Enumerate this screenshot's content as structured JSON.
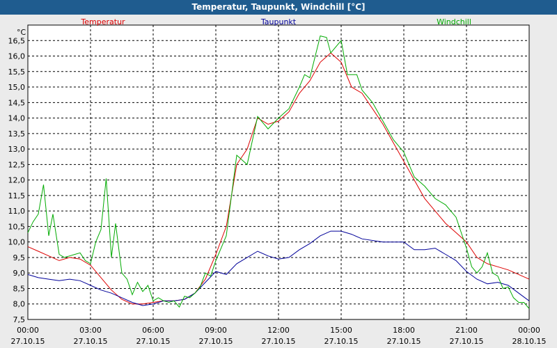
{
  "chart_data": {
    "type": "line",
    "title": "Temperatur, Taupunkt, Windchill [°C]",
    "ylabel": "°C",
    "ylim": [
      7.5,
      17.0
    ],
    "y_ticks": [
      "7,5",
      "8,0",
      "8,5",
      "9,0",
      "9,5",
      "10,0",
      "10,5",
      "11,0",
      "11,5",
      "12,0",
      "12,5",
      "13,0",
      "13,5",
      "14,0",
      "14,5",
      "15,0",
      "15,5",
      "16,0",
      "16,5"
    ],
    "x_ticks": [
      {
        "time": "00:00",
        "date": "27.10.15"
      },
      {
        "time": "03:00",
        "date": "27.10.15"
      },
      {
        "time": "06:00",
        "date": "27.10.15"
      },
      {
        "time": "09:00",
        "date": "27.10.15"
      },
      {
        "time": "12:00",
        "date": "27.10.15"
      },
      {
        "time": "15:00",
        "date": "27.10.15"
      },
      {
        "time": "18:00",
        "date": "27.10.15"
      },
      {
        "time": "21:00",
        "date": "27.10.15"
      },
      {
        "time": "00:00",
        "date": "28.10.15"
      }
    ],
    "grid": true,
    "legend_position": "top",
    "series": [
      {
        "name": "Temperatur",
        "color": "#dd0000",
        "points": [
          [
            0,
            9.85
          ],
          [
            0.5,
            9.7
          ],
          [
            1,
            9.55
          ],
          [
            1.5,
            9.4
          ],
          [
            2,
            9.5
          ],
          [
            2.5,
            9.45
          ],
          [
            3,
            9.25
          ],
          [
            3.5,
            8.85
          ],
          [
            4,
            8.45
          ],
          [
            4.5,
            8.15
          ],
          [
            5,
            8.0
          ],
          [
            5.5,
            8.0
          ],
          [
            6,
            8.05
          ],
          [
            6.5,
            8.1
          ],
          [
            7,
            8.1
          ],
          [
            7.5,
            8.15
          ],
          [
            8,
            8.35
          ],
          [
            8.5,
            8.8
          ],
          [
            9,
            9.6
          ],
          [
            9.5,
            10.5
          ],
          [
            10,
            12.5
          ],
          [
            10.5,
            13.0
          ],
          [
            11,
            14.0
          ],
          [
            11.5,
            13.8
          ],
          [
            12,
            13.9
          ],
          [
            12.5,
            14.2
          ],
          [
            13,
            14.8
          ],
          [
            13.5,
            15.2
          ],
          [
            14,
            15.8
          ],
          [
            14.5,
            16.1
          ],
          [
            15,
            15.8
          ],
          [
            15.5,
            15.0
          ],
          [
            16,
            14.8
          ],
          [
            16.5,
            14.3
          ],
          [
            17,
            13.8
          ],
          [
            17.5,
            13.2
          ],
          [
            18,
            12.6
          ],
          [
            18.5,
            12.0
          ],
          [
            19,
            11.4
          ],
          [
            19.5,
            11.0
          ],
          [
            20,
            10.6
          ],
          [
            20.5,
            10.3
          ],
          [
            21,
            10.0
          ],
          [
            21.5,
            9.5
          ],
          [
            22,
            9.3
          ],
          [
            22.5,
            9.2
          ],
          [
            23,
            9.1
          ],
          [
            23.5,
            8.95
          ],
          [
            24,
            8.8
          ]
        ]
      },
      {
        "name": "Taupunkt",
        "color": "#000099",
        "points": [
          [
            0,
            8.95
          ],
          [
            0.5,
            8.85
          ],
          [
            1,
            8.8
          ],
          [
            1.5,
            8.75
          ],
          [
            2,
            8.8
          ],
          [
            2.5,
            8.75
          ],
          [
            3,
            8.6
          ],
          [
            3.5,
            8.45
          ],
          [
            4,
            8.35
          ],
          [
            4.5,
            8.2
          ],
          [
            5,
            8.05
          ],
          [
            5.5,
            7.95
          ],
          [
            6,
            8.0
          ],
          [
            6.5,
            8.1
          ],
          [
            7,
            8.1
          ],
          [
            7.5,
            8.15
          ],
          [
            8,
            8.35
          ],
          [
            8.5,
            8.7
          ],
          [
            9,
            9.05
          ],
          [
            9.5,
            8.95
          ],
          [
            10,
            9.3
          ],
          [
            10.5,
            9.5
          ],
          [
            11,
            9.7
          ],
          [
            11.5,
            9.55
          ],
          [
            12,
            9.45
          ],
          [
            12.5,
            9.5
          ],
          [
            13,
            9.75
          ],
          [
            13.5,
            9.95
          ],
          [
            14,
            10.2
          ],
          [
            14.5,
            10.35
          ],
          [
            15,
            10.35
          ],
          [
            15.5,
            10.25
          ],
          [
            16,
            10.1
          ],
          [
            16.5,
            10.05
          ],
          [
            17,
            10.0
          ],
          [
            17.5,
            10.0
          ],
          [
            18,
            10.0
          ],
          [
            18.5,
            9.75
          ],
          [
            19,
            9.75
          ],
          [
            19.5,
            9.8
          ],
          [
            20,
            9.6
          ],
          [
            20.5,
            9.4
          ],
          [
            21,
            9.05
          ],
          [
            21.5,
            8.8
          ],
          [
            22,
            8.65
          ],
          [
            22.5,
            8.7
          ],
          [
            23,
            8.6
          ],
          [
            23.5,
            8.35
          ],
          [
            24,
            8.1
          ]
        ]
      },
      {
        "name": "Windchill",
        "color": "#00aa00",
        "points": [
          [
            0,
            10.3
          ],
          [
            0.25,
            10.65
          ],
          [
            0.5,
            10.9
          ],
          [
            0.75,
            11.85
          ],
          [
            1,
            10.2
          ],
          [
            1.2,
            10.9
          ],
          [
            1.5,
            9.6
          ],
          [
            1.75,
            9.5
          ],
          [
            2,
            9.55
          ],
          [
            2.25,
            9.6
          ],
          [
            2.5,
            9.65
          ],
          [
            2.75,
            9.4
          ],
          [
            3,
            9.3
          ],
          [
            3.25,
            10.0
          ],
          [
            3.5,
            10.4
          ],
          [
            3.75,
            12.05
          ],
          [
            4,
            9.5
          ],
          [
            4.2,
            10.6
          ],
          [
            4.5,
            9.0
          ],
          [
            4.75,
            8.8
          ],
          [
            5,
            8.3
          ],
          [
            5.25,
            8.7
          ],
          [
            5.5,
            8.4
          ],
          [
            5.75,
            8.6
          ],
          [
            6,
            8.1
          ],
          [
            6.25,
            8.2
          ],
          [
            6.5,
            8.1
          ],
          [
            6.75,
            8.05
          ],
          [
            7,
            8.1
          ],
          [
            7.25,
            7.9
          ],
          [
            7.5,
            8.25
          ],
          [
            7.75,
            8.2
          ],
          [
            8,
            8.35
          ],
          [
            8.25,
            8.55
          ],
          [
            8.5,
            9.0
          ],
          [
            8.75,
            8.9
          ],
          [
            9,
            9.4
          ],
          [
            9.5,
            10.2
          ],
          [
            10,
            12.8
          ],
          [
            10.5,
            12.5
          ],
          [
            11,
            14.05
          ],
          [
            11.5,
            13.65
          ],
          [
            12,
            14.0
          ],
          [
            12.5,
            14.3
          ],
          [
            13,
            15.0
          ],
          [
            13.25,
            15.4
          ],
          [
            13.5,
            15.3
          ],
          [
            14,
            16.65
          ],
          [
            14.3,
            16.6
          ],
          [
            14.5,
            16.1
          ],
          [
            15,
            16.5
          ],
          [
            15.3,
            15.4
          ],
          [
            15.75,
            15.4
          ],
          [
            16,
            14.9
          ],
          [
            16.5,
            14.5
          ],
          [
            17,
            13.9
          ],
          [
            17.5,
            13.3
          ],
          [
            18,
            12.9
          ],
          [
            18.5,
            12.1
          ],
          [
            19,
            11.8
          ],
          [
            19.5,
            11.4
          ],
          [
            20,
            11.2
          ],
          [
            20.5,
            10.8
          ],
          [
            21,
            9.8
          ],
          [
            21.25,
            9.2
          ],
          [
            21.5,
            9.0
          ],
          [
            21.75,
            9.2
          ],
          [
            22,
            9.65
          ],
          [
            22.25,
            9.0
          ],
          [
            22.5,
            8.9
          ],
          [
            22.75,
            8.5
          ],
          [
            23,
            8.55
          ],
          [
            23.25,
            8.2
          ],
          [
            23.5,
            8.05
          ],
          [
            23.75,
            8.05
          ],
          [
            24,
            7.85
          ]
        ]
      }
    ]
  }
}
